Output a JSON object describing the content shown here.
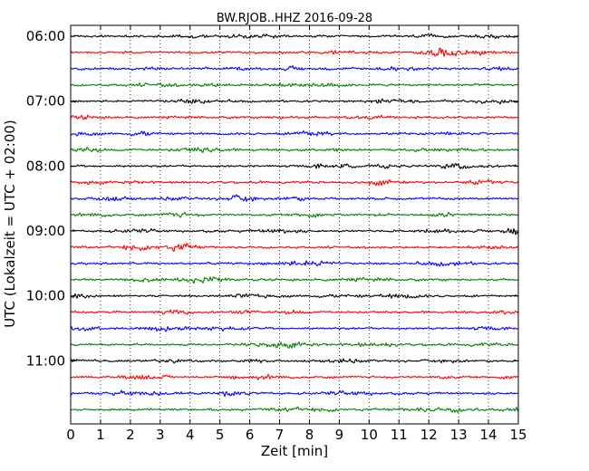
{
  "chart_data": {
    "type": "line",
    "title": "BW.RJOB..HHZ 2016-09-28",
    "xlabel": "Zeit  [min]",
    "ylabel": "UTC (Lokalzeit = UTC + 02:00)",
    "xlim": [
      0,
      15
    ],
    "x_ticks": [
      "0",
      "1",
      "2",
      "3",
      "4",
      "5",
      "6",
      "7",
      "8",
      "9",
      "10",
      "11",
      "12",
      "13",
      "14",
      "15"
    ],
    "y_ticks": [
      "06:00",
      "07:00",
      "08:00",
      "09:00",
      "10:00",
      "11:00"
    ],
    "grid": "vertical dotted at each minute",
    "trace_colors": [
      "#000000",
      "#ff0000",
      "#0000ff",
      "#008000"
    ],
    "traces": [
      {
        "start": "06:00",
        "color": "#000000"
      },
      {
        "start": "06:15",
        "color": "#ff0000"
      },
      {
        "start": "06:30",
        "color": "#0000ff"
      },
      {
        "start": "06:45",
        "color": "#008000"
      },
      {
        "start": "07:00",
        "color": "#000000"
      },
      {
        "start": "07:15",
        "color": "#ff0000"
      },
      {
        "start": "07:30",
        "color": "#0000ff"
      },
      {
        "start": "07:45",
        "color": "#008000"
      },
      {
        "start": "08:00",
        "color": "#000000"
      },
      {
        "start": "08:15",
        "color": "#ff0000"
      },
      {
        "start": "08:30",
        "color": "#0000ff"
      },
      {
        "start": "08:45",
        "color": "#008000"
      },
      {
        "start": "09:00",
        "color": "#000000"
      },
      {
        "start": "09:15",
        "color": "#ff0000"
      },
      {
        "start": "09:30",
        "color": "#0000ff"
      },
      {
        "start": "09:45",
        "color": "#008000"
      },
      {
        "start": "10:00",
        "color": "#000000"
      },
      {
        "start": "10:15",
        "color": "#ff0000"
      },
      {
        "start": "10:30",
        "color": "#0000ff"
      },
      {
        "start": "10:45",
        "color": "#008000"
      },
      {
        "start": "11:00",
        "color": "#000000"
      },
      {
        "start": "11:15",
        "color": "#ff0000"
      },
      {
        "start": "11:30",
        "color": "#0000ff"
      },
      {
        "start": "11:45",
        "color": "#008000"
      }
    ]
  }
}
